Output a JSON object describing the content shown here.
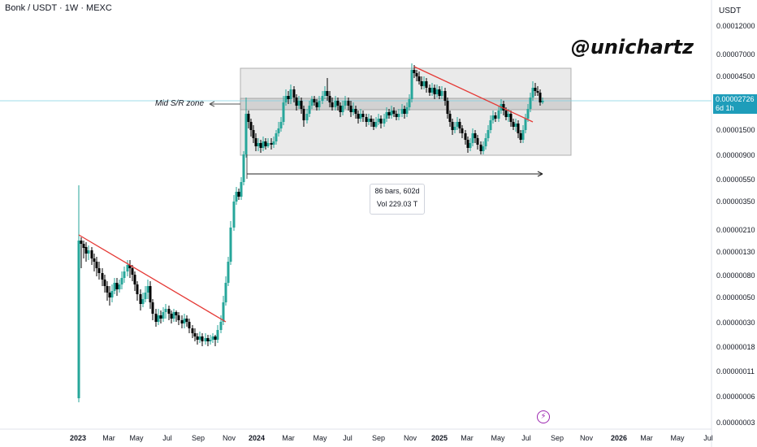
{
  "header": {
    "title": "Bonk / USDT · 1W · MEXC",
    "watermark": "@unichartz",
    "currency": "USDT"
  },
  "price_tag": {
    "price": "0.00002726",
    "countdown": "6d 1h"
  },
  "annotations": {
    "zone_label": "Mid S/R zone",
    "range_bars": "86 bars, 602d",
    "range_vol": "Vol 229.03 T"
  },
  "chart_data": {
    "type": "candlestick",
    "x_ticks": [
      "2023",
      "Mar",
      "May",
      "Jul",
      "Sep",
      "Nov",
      "2024",
      "Mar",
      "May",
      "Jul",
      "Sep",
      "Nov",
      "2025",
      "Mar",
      "May",
      "Jul",
      "Sep",
      "Nov",
      "2026",
      "Mar",
      "May",
      "Jul"
    ],
    "y_ticks": [
      "0.00012000",
      "0.00007000",
      "0.00004500",
      "0.00002726",
      "0.00001500",
      "0.00000900",
      "0.00000550",
      "0.00000350",
      "0.00000210",
      "0.00000130",
      "0.00000080",
      "0.00000050",
      "0.00000030",
      "0.00000018",
      "0.00000011",
      "0.00000006",
      "0.00000003"
    ],
    "y_scale": "log",
    "colors": {
      "up": "#26a69a",
      "down": "#000000",
      "trendline": "#e53935",
      "zone": "#e0e0e0",
      "range": "#d9d9d9"
    }
  }
}
